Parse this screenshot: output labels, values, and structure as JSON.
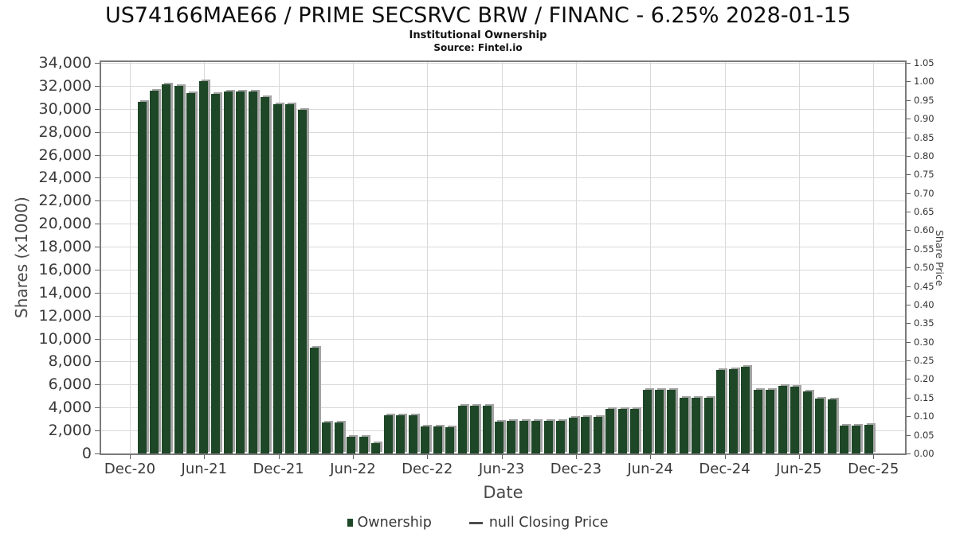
{
  "header": {
    "title": "US74166MAE66 / PRIME SECSRVC BRW / FINANC - 6.25% 2028-01-15",
    "subtitle": "Institutional Ownership",
    "source": "Source: Fintel.io"
  },
  "axes": {
    "x": {
      "label": "Date",
      "ticks": [
        "Dec-20",
        "Jun-21",
        "Dec-21",
        "Jun-22",
        "Dec-22",
        "Jun-23",
        "Dec-23",
        "Jun-24",
        "Dec-24",
        "Jun-25",
        "Dec-25"
      ]
    },
    "y_left": {
      "label": "Shares (x1000)",
      "min": 0,
      "max": 34000,
      "step": 2000
    },
    "y_right": {
      "label": "Share Price",
      "min": 0,
      "max": 1.05,
      "step": 0.05
    }
  },
  "legend": {
    "items": [
      {
        "label": "Ownership",
        "swatch": "square",
        "color": "#1e4727"
      },
      {
        "label": "null Closing Price",
        "swatch": "line",
        "color": "#4d4d4d"
      }
    ]
  },
  "chart_data": {
    "type": "bar",
    "title": "US74166MAE66 / PRIME SECSRVC BRW / FINANC - 6.25% 2028-01-15",
    "subtitle": "Institutional Ownership",
    "source": "Source: Fintel.io",
    "xlabel": "Date",
    "ylabel": "Shares (x1000)",
    "ylabel_right": "Share Price",
    "ylim_left": [
      0,
      34000
    ],
    "ytick_step_left": 2000,
    "ylim_right": [
      0,
      1.05
    ],
    "ytick_step_right": 0.05,
    "grid": true,
    "legend_position": "bottom",
    "bar_color": "#1e4727",
    "x_tick_labels": [
      "Dec-20",
      "Jun-21",
      "Dec-21",
      "Jun-22",
      "Dec-22",
      "Jun-23",
      "Dec-23",
      "Jun-24",
      "Dec-24",
      "Jun-25",
      "Dec-25"
    ],
    "x": [
      "Jan-21",
      "Feb-21",
      "Mar-21",
      "Apr-21",
      "May-21",
      "Jun-21",
      "Jul-21",
      "Aug-21",
      "Sep-21",
      "Oct-21",
      "Nov-21",
      "Dec-21",
      "Jan-22",
      "Feb-22",
      "Mar-22",
      "Apr-22",
      "May-22",
      "Jun-22",
      "Jul-22",
      "Aug-22",
      "Sep-22",
      "Oct-22",
      "Nov-22",
      "Dec-22",
      "Jan-23",
      "Feb-23",
      "Mar-23",
      "Apr-23",
      "May-23",
      "Jun-23",
      "Jul-23",
      "Aug-23",
      "Sep-23",
      "Oct-23",
      "Nov-23",
      "Dec-23",
      "Jan-24",
      "Feb-24",
      "Mar-24",
      "Apr-24",
      "May-24",
      "Jun-24",
      "Jul-24",
      "Aug-24",
      "Sep-24",
      "Oct-24",
      "Nov-24",
      "Dec-24",
      "Jan-25",
      "Feb-25",
      "Mar-25",
      "Apr-25",
      "May-25",
      "Jun-25",
      "Jul-25",
      "Aug-25",
      "Sep-25",
      "Oct-25",
      "Nov-25",
      "Dec-25"
    ],
    "series": [
      {
        "name": "Ownership",
        "values": [
          30600,
          31600,
          32150,
          32000,
          31400,
          32400,
          31300,
          31500,
          31500,
          31500,
          31000,
          30400,
          30400,
          29950,
          9200,
          2700,
          2700,
          1450,
          1470,
          930,
          3300,
          3300,
          3300,
          2370,
          2380,
          2260,
          4130,
          4130,
          4130,
          2760,
          2870,
          2840,
          2850,
          2850,
          2870,
          3100,
          3215,
          3200,
          3850,
          3900,
          3880,
          5540,
          5560,
          5550,
          4880,
          4880,
          4880,
          7270,
          7340,
          7525,
          5540,
          5560,
          5880,
          5800,
          5380,
          4770,
          4700,
          2450,
          2450,
          2470
        ]
      },
      {
        "name": "null Closing Price",
        "values": []
      }
    ]
  }
}
